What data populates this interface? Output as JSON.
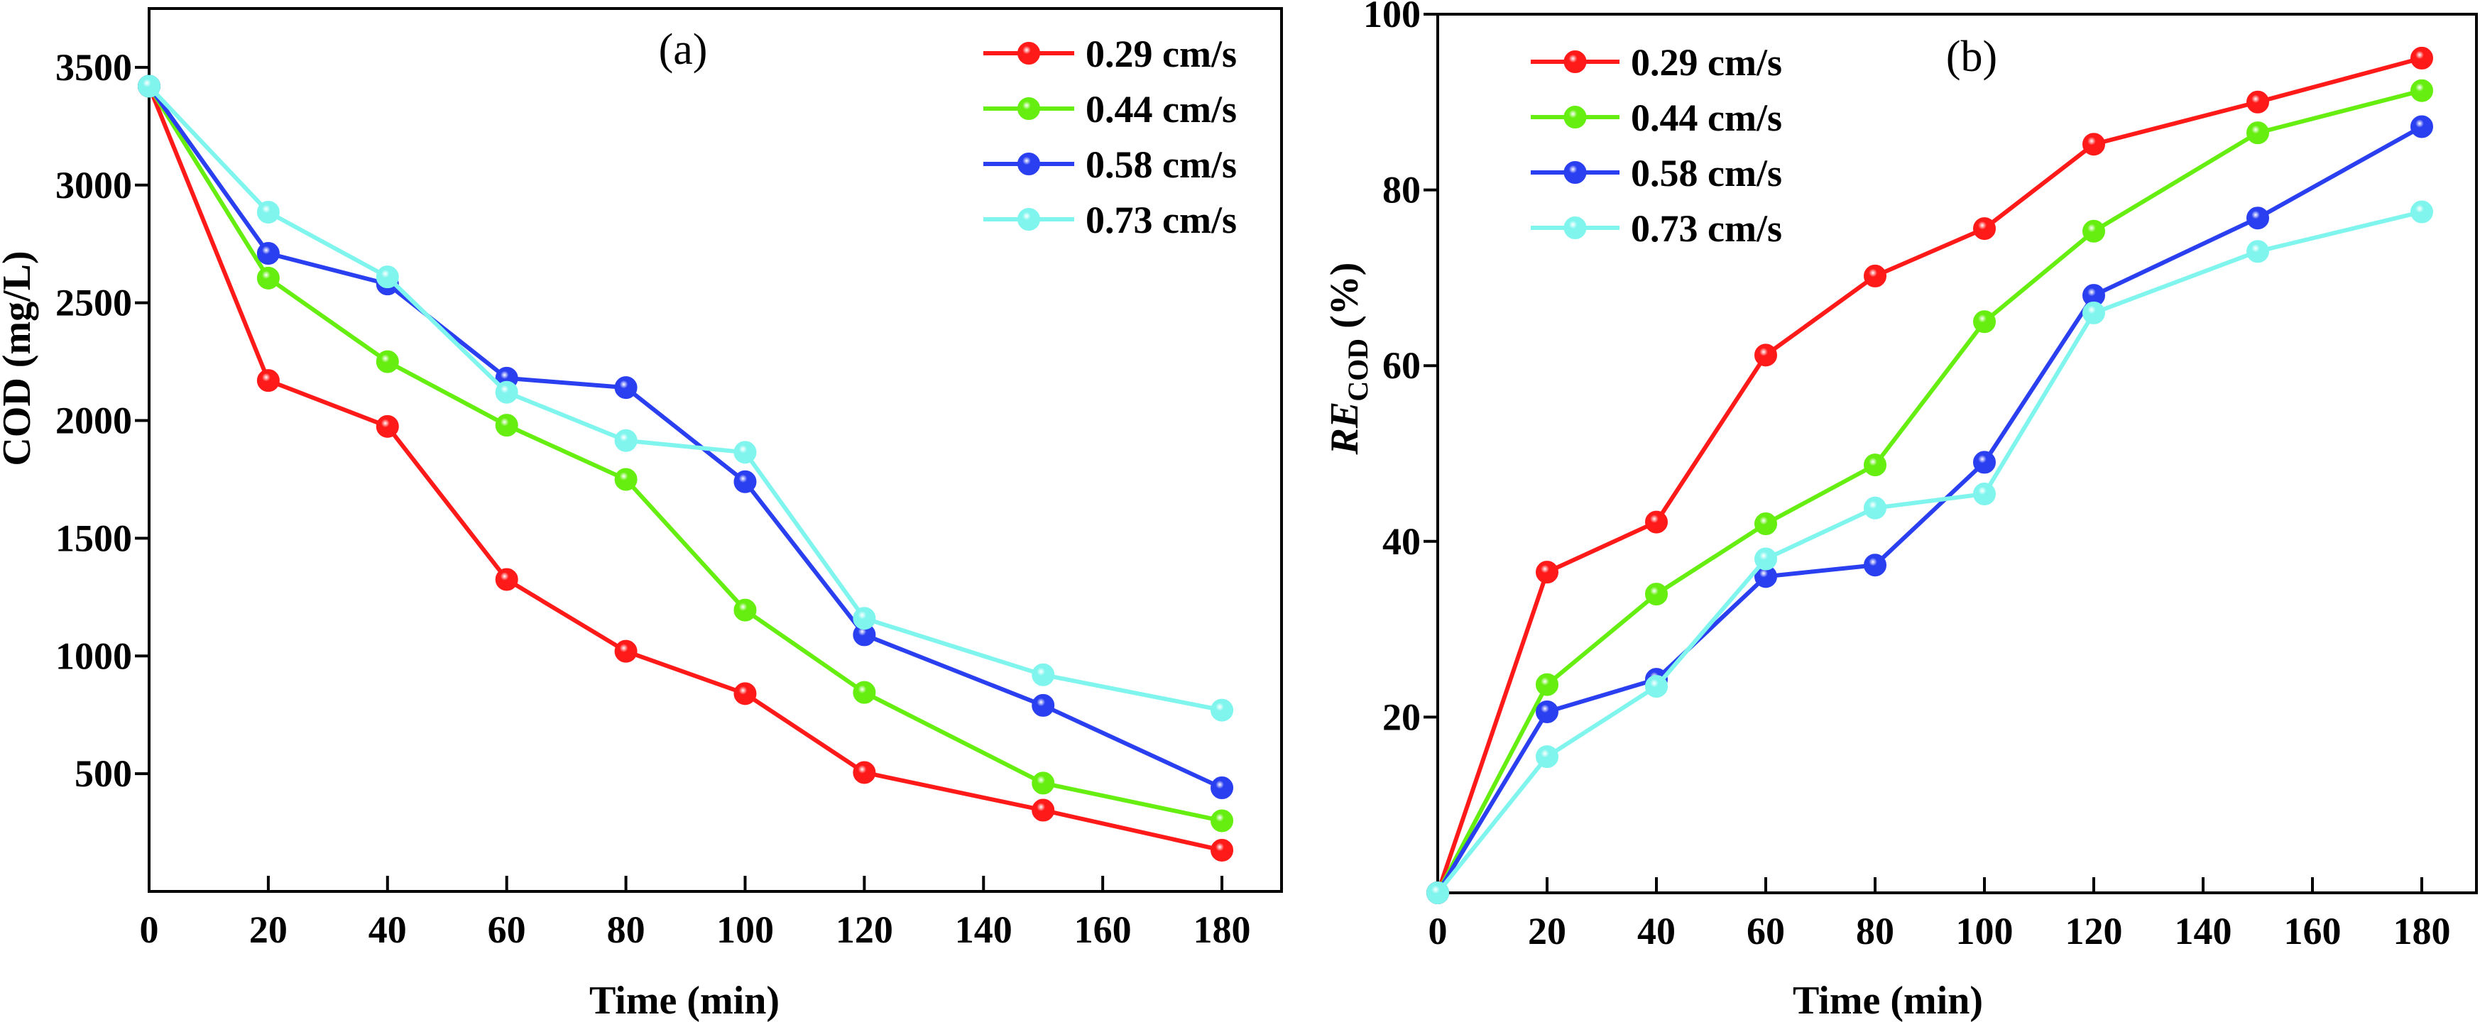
{
  "chart_data": [
    {
      "type": "line",
      "panel_label": "(a)",
      "xlabel": "Time (min)",
      "ylabel": "COD (mg/L)",
      "xlim": [
        0,
        190
      ],
      "ylim": [
        0,
        3750
      ],
      "xticks": [
        0,
        20,
        40,
        60,
        80,
        100,
        120,
        140,
        160,
        180
      ],
      "yticks": [
        500,
        1000,
        1500,
        2000,
        2500,
        3000,
        3500
      ],
      "grid": false,
      "legend_position": "top-right",
      "x": [
        0,
        20,
        40,
        60,
        80,
        100,
        120,
        150,
        180
      ],
      "series": [
        {
          "name": "0.29 cm/s",
          "color": "#ff1a1a",
          "values": [
            3420,
            2170,
            1975,
            1325,
            1020,
            840,
            505,
            345,
            175
          ]
        },
        {
          "name": "0.44 cm/s",
          "color": "#66ee11",
          "values": [
            3420,
            2605,
            2250,
            1980,
            1750,
            1195,
            845,
            460,
            300
          ]
        },
        {
          "name": "0.58 cm/s",
          "color": "#2a3ff0",
          "values": [
            3420,
            2710,
            2580,
            2180,
            2140,
            1740,
            1090,
            790,
            440
          ]
        },
        {
          "name": "0.73 cm/s",
          "color": "#7ff5ee",
          "values": [
            3420,
            2885,
            2610,
            2120,
            1915,
            1865,
            1160,
            920,
            770
          ]
        }
      ]
    },
    {
      "type": "line",
      "panel_label": "(b)",
      "xlabel": "Time (min)",
      "ylabel_main": "RE",
      "ylabel_sub": "COD",
      "ylabel_unit": " (%)",
      "xlim": [
        0,
        190
      ],
      "ylim": [
        0,
        100
      ],
      "xticks": [
        0,
        20,
        40,
        60,
        80,
        100,
        120,
        140,
        160,
        180
      ],
      "yticks": [
        20,
        40,
        60,
        80,
        100
      ],
      "grid": false,
      "legend_position": "top-left",
      "x": [
        0,
        20,
        40,
        60,
        80,
        100,
        120,
        150,
        180
      ],
      "series": [
        {
          "name": "0.29 cm/s",
          "color": "#ff1a1a",
          "values": [
            0,
            36.5,
            42.2,
            61.2,
            70.2,
            75.6,
            85.2,
            90.0,
            95.0
          ]
        },
        {
          "name": "0.44 cm/s",
          "color": "#66ee11",
          "values": [
            0,
            23.7,
            34.0,
            42.0,
            48.7,
            65.0,
            75.3,
            86.5,
            91.3
          ]
        },
        {
          "name": "0.58 cm/s",
          "color": "#2a3ff0",
          "values": [
            0,
            20.6,
            24.3,
            36.0,
            37.3,
            49.0,
            68.0,
            76.8,
            87.2
          ]
        },
        {
          "name": "0.73 cm/s",
          "color": "#7ff5ee",
          "values": [
            0,
            15.5,
            23.5,
            38.0,
            43.8,
            45.4,
            66.0,
            73.0,
            77.5
          ]
        }
      ]
    }
  ]
}
